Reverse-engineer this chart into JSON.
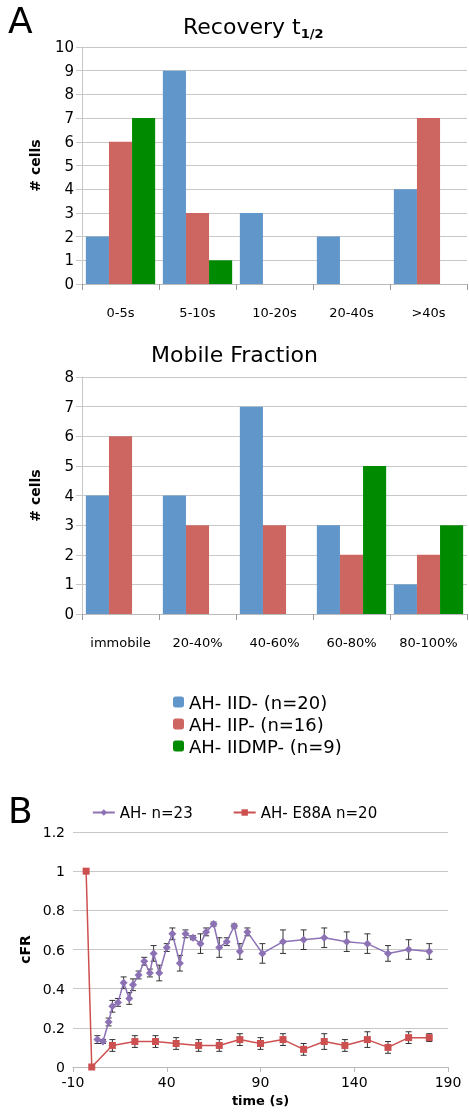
{
  "chart_data": [
    {
      "type": "bar",
      "title": "Recovery t$_{1/2}$",
      "ylabel": "# cells",
      "annotations": [
        "A"
      ],
      "categories": [
        "0-5s",
        "5-10s",
        "10-20s",
        "20-40s",
        ">40s"
      ],
      "series": [
        {
          "color": "#6096c9",
          "values": [
            2,
            9,
            3,
            2,
            4
          ]
        },
        {
          "color": "#cd6660",
          "values": [
            6,
            3,
            0,
            0,
            7
          ]
        },
        {
          "color": "#008a00",
          "values": [
            7,
            1,
            0,
            0,
            0
          ]
        }
      ],
      "ylim": [
        0,
        10
      ],
      "yticks": [
        0,
        1,
        2,
        3,
        4,
        5,
        6,
        7,
        8,
        9,
        10
      ],
      "grid": "y",
      "legend": false
    },
    {
      "type": "bar",
      "title": "Mobile Fraction",
      "ylabel": "# cells",
      "categories": [
        "immobile",
        "20-40%",
        "40-60%",
        "60-80%",
        "80-100%"
      ],
      "series": [
        {
          "name": "AH- IID- (n=20)",
          "color": "#6096c9",
          "values": [
            4,
            4,
            7,
            3,
            1
          ]
        },
        {
          "name": "AH- IIP- (n=16)",
          "color": "#cd6660",
          "values": [
            6,
            3,
            3,
            2,
            2
          ]
        },
        {
          "name": "AH- IIDMP- (n=9)",
          "color": "#008a00",
          "values": [
            0,
            0,
            0,
            5,
            3
          ]
        }
      ],
      "ylim": [
        0,
        8
      ],
      "yticks": [
        0,
        1,
        2,
        3,
        4,
        5,
        6,
        7,
        8
      ],
      "grid": "y",
      "legend": "bottom"
    },
    {
      "type": "line",
      "xlabel": "time (s)",
      "ylabel": "cFR",
      "annotations": [
        "B"
      ],
      "series": [
        {
          "name": "AH- n=23",
          "color": "#8c72b5",
          "marker": "diamond",
          "x": [
            3,
            6,
            9,
            11,
            14,
            17,
            20,
            22,
            25,
            28,
            31,
            33,
            36,
            40,
            43,
            47,
            50,
            54,
            58,
            61,
            65,
            68,
            72,
            76,
            79,
            83,
            91,
            102,
            113,
            124,
            136,
            147,
            158,
            169,
            180
          ],
          "values": [
            0.14,
            0.13,
            0.23,
            0.31,
            0.33,
            0.43,
            0.35,
            0.42,
            0.47,
            0.54,
            0.48,
            0.58,
            0.48,
            0.61,
            0.68,
            0.53,
            0.68,
            0.66,
            0.63,
            0.69,
            0.73,
            0.61,
            0.64,
            0.72,
            0.59,
            0.69,
            0.58,
            0.64,
            0.65,
            0.66,
            0.64,
            0.63,
            0.58,
            0.6,
            0.59
          ],
          "errors": [
            0.02,
            0.01,
            0.02,
            0.03,
            0.02,
            0.03,
            0.03,
            0.03,
            0.02,
            0.02,
            0.02,
            0.04,
            0.04,
            0.02,
            0.03,
            0.04,
            0.02,
            0.01,
            0.05,
            0.02,
            0.01,
            0.05,
            0.02,
            0.01,
            0.04,
            0.02,
            0.05,
            0.06,
            0.05,
            0.05,
            0.05,
            0.05,
            0.04,
            0.05,
            0.04
          ]
        },
        {
          "name": "AH- E88A n=20",
          "color": "#cd5050",
          "marker": "square",
          "x": [
            -3,
            0,
            11,
            23,
            34,
            45,
            57,
            68,
            79,
            90,
            102,
            113,
            124,
            135,
            147,
            158,
            169,
            180
          ],
          "values": [
            1,
            0,
            0.11,
            0.13,
            0.13,
            0.12,
            0.11,
            0.11,
            0.14,
            0.12,
            0.14,
            0.09,
            0.13,
            0.11,
            0.14,
            0.1,
            0.15,
            0.15
          ],
          "errors": [
            null,
            null,
            0.03,
            0.03,
            0.03,
            0.03,
            0.03,
            0.03,
            0.03,
            0.03,
            0.03,
            0.03,
            0.04,
            0.03,
            0.04,
            0.03,
            0.03,
            0.02
          ]
        }
      ],
      "xlim": [
        -10,
        190
      ],
      "xticks": [
        -10,
        40,
        90,
        140,
        190
      ],
      "ylim": [
        0,
        1.2
      ],
      "yticks": [
        0,
        0.2,
        0.4,
        0.6,
        0.8,
        1,
        1.2
      ],
      "grid": "y",
      "legend": "top"
    }
  ]
}
